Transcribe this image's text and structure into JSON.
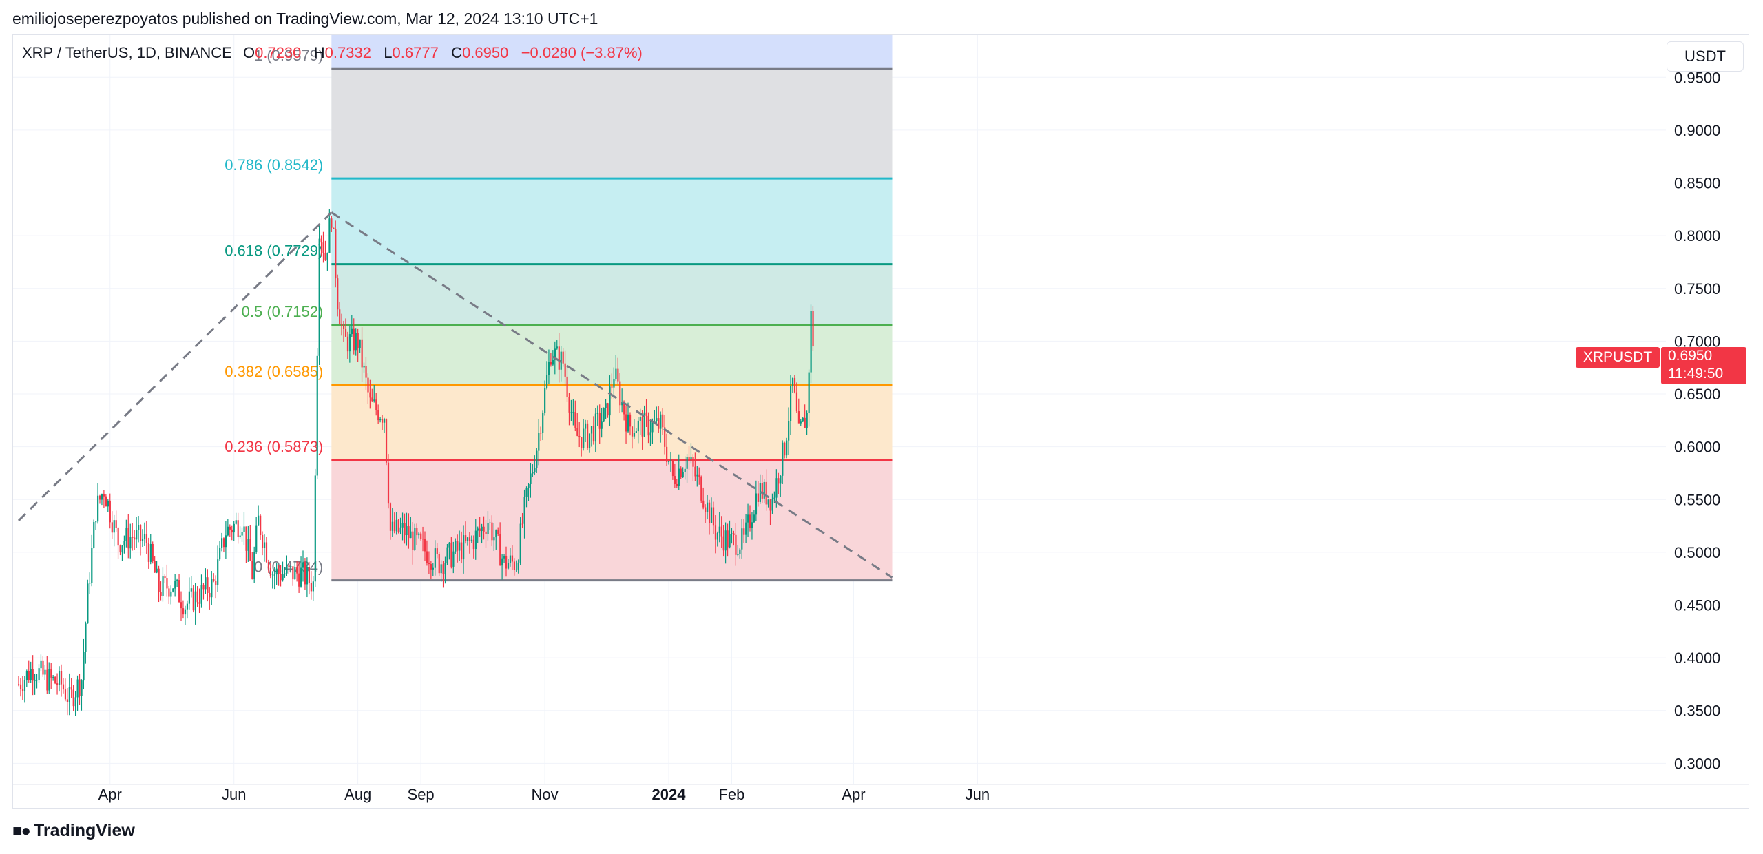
{
  "publisher": "emiliojoseperezpoyatos published on TradingView.com, Mar 12, 2024 13:10 UTC+1",
  "legend": {
    "pair": "XRP / TetherUS, 1D, BINANCE",
    "o_label": "O",
    "o_value": "0.7230",
    "h_label": "H",
    "h_value": "0.7332",
    "l_label": "L",
    "l_value": "0.6777",
    "c_label": "C",
    "c_value": "0.6950",
    "change": "−0.0280 (−3.87%)"
  },
  "currency_button": "USDT",
  "price_tag": {
    "symbol": "XRPUSDT",
    "price": "0.6950",
    "countdown": "11:49:50"
  },
  "footer": {
    "logo_text": "TradingView"
  },
  "colors": {
    "up": "#089981",
    "down": "#f23645",
    "trendline": "#787b86"
  },
  "chart_data": {
    "type": "candlestick",
    "y_axis": {
      "min": 0.28,
      "max": 0.99,
      "ticks": [
        "0.3000",
        "0.3500",
        "0.4000",
        "0.4500",
        "0.5000",
        "0.5500",
        "0.6000",
        "0.6500",
        "0.7000",
        "0.7500",
        "0.8000",
        "0.8500",
        "0.9000",
        "0.9500"
      ]
    },
    "x_axis": {
      "ticks": [
        {
          "label": "Apr",
          "date": "2023-04-01"
        },
        {
          "label": "Jun",
          "date": "2023-06-01"
        },
        {
          "label": "Aug",
          "date": "2023-08-01"
        },
        {
          "label": "Sep",
          "date": "2023-09-01"
        },
        {
          "label": "Nov",
          "date": "2023-11-01"
        },
        {
          "label": "2024",
          "date": "2024-01-01",
          "bold": true
        },
        {
          "label": "Feb",
          "date": "2024-02-01"
        },
        {
          "label": "Apr",
          "date": "2024-04-01"
        },
        {
          "label": "Jun",
          "date": "2024-06-01"
        }
      ]
    },
    "grid": true,
    "series": [
      {
        "date": "2023-02-15",
        "close": 0.375
      },
      {
        "date": "2023-02-22",
        "close": 0.39
      },
      {
        "date": "2023-03-01",
        "close": 0.38
      },
      {
        "date": "2023-03-08",
        "close": 0.375
      },
      {
        "date": "2023-03-12",
        "close": 0.36
      },
      {
        "date": "2023-03-18",
        "close": 0.38
      },
      {
        "date": "2023-03-21",
        "close": 0.46
      },
      {
        "date": "2023-03-25",
        "close": 0.54
      },
      {
        "date": "2023-03-29",
        "close": 0.56
      },
      {
        "date": "2023-04-05",
        "close": 0.51
      },
      {
        "date": "2023-04-12",
        "close": 0.515
      },
      {
        "date": "2023-04-19",
        "close": 0.51
      },
      {
        "date": "2023-04-25",
        "close": 0.465
      },
      {
        "date": "2023-05-02",
        "close": 0.47
      },
      {
        "date": "2023-05-08",
        "close": 0.45
      },
      {
        "date": "2023-05-15",
        "close": 0.46
      },
      {
        "date": "2023-05-22",
        "close": 0.47
      },
      {
        "date": "2023-05-28",
        "close": 0.52
      },
      {
        "date": "2023-06-05",
        "close": 0.53
      },
      {
        "date": "2023-06-10",
        "close": 0.48
      },
      {
        "date": "2023-06-13",
        "close": 0.53
      },
      {
        "date": "2023-06-20",
        "close": 0.48
      },
      {
        "date": "2023-06-27",
        "close": 0.48
      },
      {
        "date": "2023-07-04",
        "close": 0.48
      },
      {
        "date": "2023-07-10",
        "close": 0.47
      },
      {
        "date": "2023-07-13",
        "close": 0.81
      },
      {
        "date": "2023-07-16",
        "close": 0.78
      },
      {
        "date": "2023-07-19",
        "close": 0.82
      },
      {
        "date": "2023-07-22",
        "close": 0.74
      },
      {
        "date": "2023-07-25",
        "close": 0.7
      },
      {
        "date": "2023-08-01",
        "close": 0.7
      },
      {
        "date": "2023-08-07",
        "close": 0.64
      },
      {
        "date": "2023-08-14",
        "close": 0.63
      },
      {
        "date": "2023-08-17",
        "close": 0.52
      },
      {
        "date": "2023-08-24",
        "close": 0.52
      },
      {
        "date": "2023-09-01",
        "close": 0.505
      },
      {
        "date": "2023-09-10",
        "close": 0.49
      },
      {
        "date": "2023-09-18",
        "close": 0.5
      },
      {
        "date": "2023-09-26",
        "close": 0.51
      },
      {
        "date": "2023-10-04",
        "close": 0.53
      },
      {
        "date": "2023-10-12",
        "close": 0.49
      },
      {
        "date": "2023-10-18",
        "close": 0.49
      },
      {
        "date": "2023-10-22",
        "close": 0.54
      },
      {
        "date": "2023-10-28",
        "close": 0.6
      },
      {
        "date": "2023-11-04",
        "close": 0.69
      },
      {
        "date": "2023-11-10",
        "close": 0.68
      },
      {
        "date": "2023-11-16",
        "close": 0.61
      },
      {
        "date": "2023-11-22",
        "close": 0.61
      },
      {
        "date": "2023-12-01",
        "close": 0.63
      },
      {
        "date": "2023-12-05",
        "close": 0.67
      },
      {
        "date": "2023-12-12",
        "close": 0.62
      },
      {
        "date": "2023-12-20",
        "close": 0.62
      },
      {
        "date": "2023-12-28",
        "close": 0.62
      },
      {
        "date": "2024-01-03",
        "close": 0.57
      },
      {
        "date": "2024-01-10",
        "close": 0.59
      },
      {
        "date": "2024-01-17",
        "close": 0.56
      },
      {
        "date": "2024-01-24",
        "close": 0.52
      },
      {
        "date": "2024-01-31",
        "close": 0.51
      },
      {
        "date": "2024-02-07",
        "close": 0.51
      },
      {
        "date": "2024-02-14",
        "close": 0.56
      },
      {
        "date": "2024-02-21",
        "close": 0.55
      },
      {
        "date": "2024-02-27",
        "close": 0.6
      },
      {
        "date": "2024-03-02",
        "close": 0.66
      },
      {
        "date": "2024-03-05",
        "close": 0.61
      },
      {
        "date": "2024-03-09",
        "close": 0.63
      },
      {
        "date": "2024-03-11",
        "close": 0.723
      },
      {
        "date": "2024-03-12",
        "close": 0.695
      }
    ],
    "fib_levels": [
      {
        "label": "1 (0.9579)",
        "value": 0.9579,
        "color": "#787b86",
        "fill": "#dfe0e3"
      },
      {
        "label": "0.786 (0.8542)",
        "value": 0.8542,
        "color": "#22b8c9",
        "fill": "#c6eef2"
      },
      {
        "label": "0.618 (0.7729)",
        "value": 0.7729,
        "color": "#089981",
        "fill": "#cfeae5"
      },
      {
        "label": "0.5 (0.7152)",
        "value": 0.7152,
        "color": "#4caf50",
        "fill": "#d8eed7"
      },
      {
        "label": "0.382 (0.6585)",
        "value": 0.6585,
        "color": "#ff9800",
        "fill": "#fde8cc"
      },
      {
        "label": "0.236 (0.5873)",
        "value": 0.5873,
        "color": "#f23645",
        "fill": "#f9d6d9"
      },
      {
        "label": "0 (0.4734)",
        "value": 0.4734,
        "color": "#787b86",
        "fill": null
      }
    ],
    "fib_top_fill": "#d4dffc",
    "fib_range": {
      "from": "2023-07-19",
      "to": "2024-04-20"
    },
    "trendlines": [
      {
        "from": {
          "date": "2023-02-15",
          "value": 0.53
        },
        "to": {
          "date": "2023-07-19",
          "value": 0.822
        }
      },
      {
        "from": {
          "date": "2023-07-19",
          "value": 0.822
        },
        "to": {
          "date": "2024-04-20",
          "value": 0.476
        }
      }
    ]
  }
}
